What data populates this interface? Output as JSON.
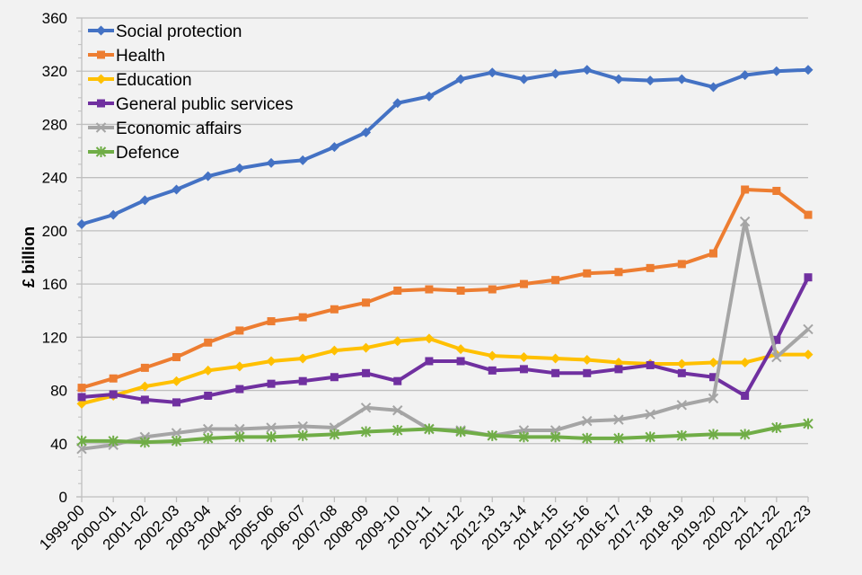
{
  "chart_data": {
    "type": "line",
    "title": "",
    "xlabel": "",
    "ylabel": "£ billion",
    "ylim": [
      0,
      360
    ],
    "yticks": [
      0,
      40,
      80,
      120,
      160,
      200,
      240,
      280,
      320,
      360
    ],
    "grid": true,
    "legend_position": "top-left",
    "categories": [
      "1999-00",
      "2000-01",
      "2001-02",
      "2002-03",
      "2003-04",
      "2004-05",
      "2005-06",
      "2006-07",
      "2007-08",
      "2008-09",
      "2009-10",
      "2010-11",
      "2011-12",
      "2012-13",
      "2013-14",
      "2014-15",
      "2015-16",
      "2016-17",
      "2017-18",
      "2018-19",
      "2019-20",
      "2020-21",
      "2021-22",
      "2022-23"
    ],
    "series": [
      {
        "name": "Social protection",
        "color": "#4472c4",
        "marker": "diamond",
        "values": [
          205,
          212,
          223,
          231,
          241,
          247,
          251,
          253,
          263,
          274,
          296,
          301,
          314,
          319,
          314,
          318,
          321,
          314,
          313,
          314,
          308,
          317,
          320,
          321
        ]
      },
      {
        "name": "Health",
        "color": "#ed7d31",
        "marker": "square",
        "values": [
          82,
          89,
          97,
          105,
          116,
          125,
          132,
          135,
          141,
          146,
          155,
          156,
          155,
          156,
          160,
          163,
          168,
          169,
          172,
          175,
          183,
          231,
          230,
          212
        ]
      },
      {
        "name": "Education",
        "color": "#ffc000",
        "marker": "diamond",
        "values": [
          70,
          76,
          83,
          87,
          95,
          98,
          102,
          104,
          110,
          112,
          117,
          119,
          111,
          106,
          105,
          104,
          103,
          101,
          100,
          100,
          101,
          101,
          107,
          107
        ]
      },
      {
        "name": "General public services",
        "color": "#7030a0",
        "marker": "square",
        "values": [
          75,
          77,
          73,
          71,
          76,
          81,
          85,
          87,
          90,
          93,
          87,
          102,
          102,
          95,
          96,
          93,
          93,
          96,
          99,
          93,
          90,
          76,
          118,
          165
        ]
      },
      {
        "name": "Economic affairs",
        "color": "#a5a5a5",
        "marker": "x",
        "values": [
          36,
          39,
          45,
          48,
          51,
          51,
          52,
          53,
          52,
          67,
          65,
          51,
          50,
          46,
          50,
          50,
          57,
          58,
          62,
          69,
          74,
          207,
          105,
          126
        ]
      },
      {
        "name": "Defence",
        "color": "#70ad47",
        "marker": "star",
        "values": [
          42,
          42,
          41,
          42,
          44,
          45,
          45,
          46,
          47,
          49,
          50,
          51,
          49,
          46,
          45,
          45,
          44,
          44,
          45,
          46,
          47,
          47,
          52,
          55
        ]
      }
    ]
  }
}
